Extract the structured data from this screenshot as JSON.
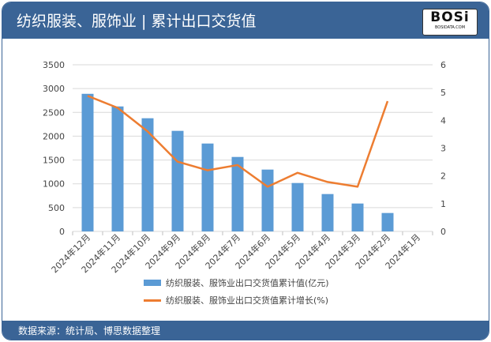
{
  "header": {
    "title": "纺织服装、服饰业 | 累计出口交货值",
    "logo": "BOSi BOSIDATA.COM"
  },
  "footer": {
    "source": "数据来源：统计局、博思数据整理"
  },
  "colors": {
    "bar": "#5b9bd5",
    "line": "#ed7d31",
    "header": "#3a6496"
  },
  "chart_data": {
    "type": "bar+line",
    "categories": [
      "2024年12月",
      "2024年11月",
      "2024年10月",
      "2024年9月",
      "2024年8月",
      "2024年7月",
      "2024年6月",
      "2024年5月",
      "2024年4月",
      "2024年3月",
      "2024年2月",
      "2024年1月"
    ],
    "series": [
      {
        "name": "纺织服装、服饰业出口交货值累计值(亿元)",
        "type": "bar",
        "axis": "left",
        "values": [
          2890,
          2625,
          2377,
          2112,
          1846,
          1564,
          1299,
          1017,
          785,
          586,
          387,
          null
        ]
      },
      {
        "name": "纺织服装、服饰业出口交货值累计增长(%)",
        "type": "line",
        "axis": "right",
        "values": [
          4.88,
          4.45,
          3.6,
          2.51,
          2.2,
          2.39,
          1.61,
          2.11,
          1.78,
          1.61,
          4.69,
          null
        ]
      }
    ],
    "ylim_left": [
      0,
      3500
    ],
    "yticks_left": [
      0,
      500,
      1000,
      1500,
      2000,
      2500,
      3000,
      3500
    ],
    "ylim_right": [
      0,
      6
    ],
    "yticks_right": [
      0,
      1,
      2,
      3,
      4,
      5,
      6
    ],
    "grid": true,
    "legend": "bottom"
  }
}
